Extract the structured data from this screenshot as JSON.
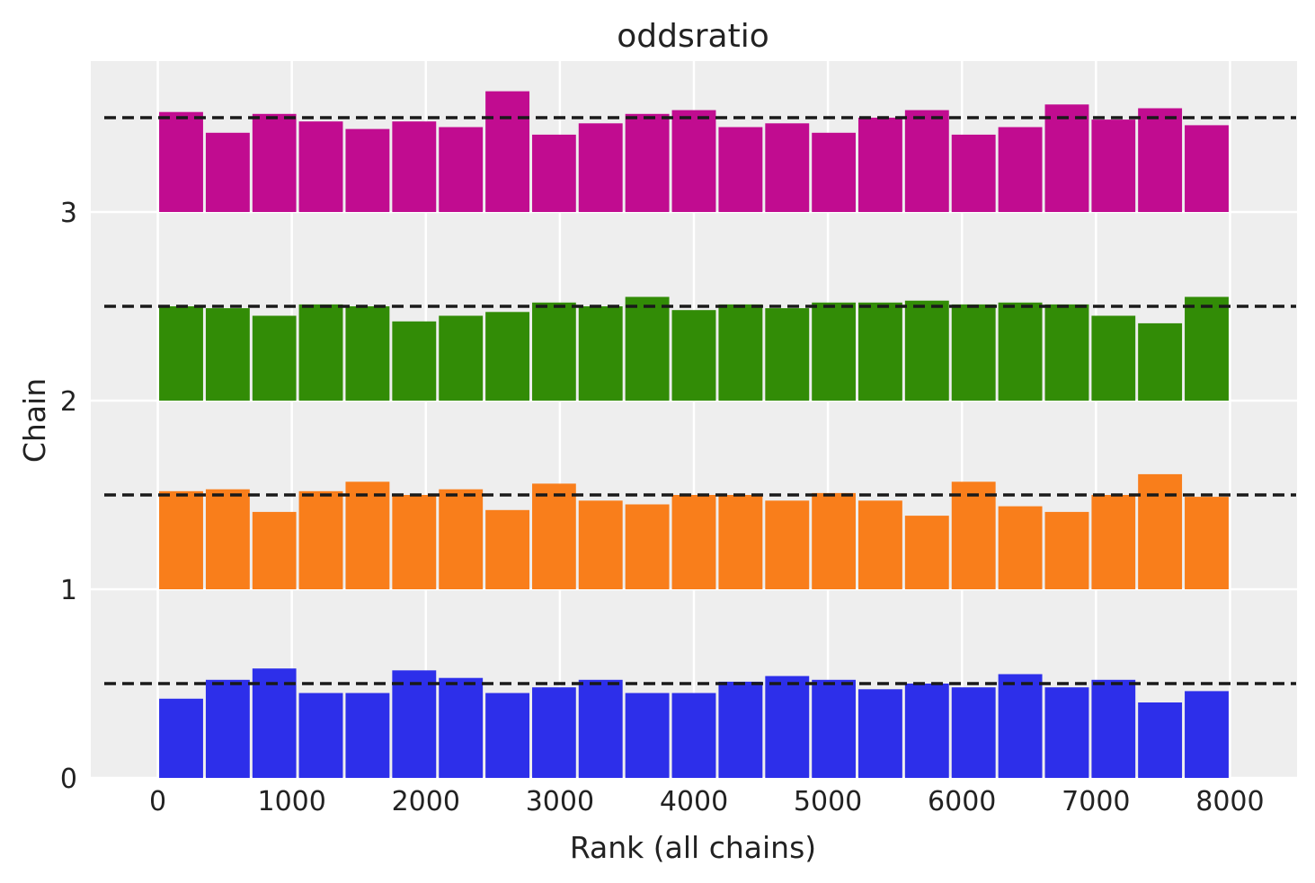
{
  "chart_data": {
    "type": "bar",
    "title": "oddsratio",
    "xlabel": "Rank (all chains)",
    "ylabel": "Chain",
    "xlim": [
      -500,
      8500
    ],
    "ylim": [
      0,
      3.8
    ],
    "x_ticks": [
      0,
      1000,
      2000,
      3000,
      4000,
      5000,
      6000,
      7000,
      8000
    ],
    "y_ticks": [
      0,
      1,
      2,
      3
    ],
    "grid": true,
    "bin_edges": [
      0,
      348,
      696,
      1043,
      1391,
      1739,
      2087,
      2435,
      2783,
      3130,
      3478,
      3826,
      4174,
      4522,
      4870,
      5217,
      5565,
      5913,
      6261,
      6609,
      6957,
      7304,
      7652,
      8000
    ],
    "reference_lines": [
      0.5,
      1.5,
      2.5,
      3.5
    ],
    "series": [
      {
        "chain": 0,
        "color": "#2d2fea",
        "values": [
          0.42,
          0.52,
          0.58,
          0.45,
          0.45,
          0.57,
          0.53,
          0.45,
          0.48,
          0.52,
          0.45,
          0.45,
          0.51,
          0.54,
          0.52,
          0.47,
          0.5,
          0.48,
          0.55,
          0.48,
          0.52,
          0.4,
          0.46
        ]
      },
      {
        "chain": 1,
        "color": "#f97e1b",
        "values": [
          0.52,
          0.53,
          0.41,
          0.52,
          0.57,
          0.5,
          0.53,
          0.42,
          0.56,
          0.47,
          0.45,
          0.5,
          0.5,
          0.47,
          0.51,
          0.47,
          0.39,
          0.57,
          0.44,
          0.41,
          0.5,
          0.61,
          0.49
        ]
      },
      {
        "chain": 2,
        "color": "#328c06",
        "values": [
          0.5,
          0.49,
          0.45,
          0.51,
          0.5,
          0.42,
          0.45,
          0.47,
          0.52,
          0.5,
          0.55,
          0.48,
          0.51,
          0.49,
          0.52,
          0.52,
          0.53,
          0.51,
          0.52,
          0.51,
          0.45,
          0.41,
          0.55
        ]
      },
      {
        "chain": 3,
        "color": "#c10c90",
        "values": [
          0.53,
          0.42,
          0.52,
          0.48,
          0.44,
          0.48,
          0.45,
          0.64,
          0.41,
          0.47,
          0.52,
          0.54,
          0.45,
          0.47,
          0.42,
          0.5,
          0.54,
          0.41,
          0.45,
          0.57,
          0.49,
          0.55,
          0.46
        ]
      }
    ],
    "colors": {
      "plot_background": "#eeeeee",
      "grid": "#ffffff",
      "reference_line": "#1a1a1a"
    }
  }
}
